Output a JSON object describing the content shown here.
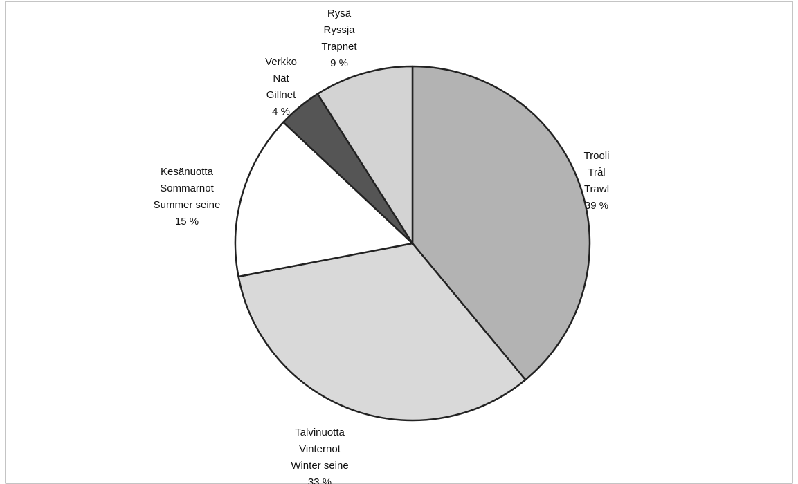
{
  "chart_data": {
    "type": "pie",
    "categories": [
      [
        "Trooli",
        "Trål",
        "Trawl"
      ],
      [
        "Talvinuotta",
        "Vinternot",
        "Winter seine"
      ],
      [
        "Kesänuotta",
        "Sommarnot",
        "Summer seine"
      ],
      [
        "Verkko",
        "Nät",
        "Gillnet"
      ],
      [
        "Rysä",
        "Ryssja",
        "Trapnet"
      ]
    ],
    "values": [
      39,
      33,
      15,
      4,
      9
    ],
    "value_labels": [
      "39 %",
      "33 %",
      "15 %",
      "4 %",
      "9 %"
    ],
    "colors": [
      "#b3b3b3",
      "#d9d9d9",
      "#ffffff",
      "#555555",
      "#d3d3d3"
    ]
  }
}
